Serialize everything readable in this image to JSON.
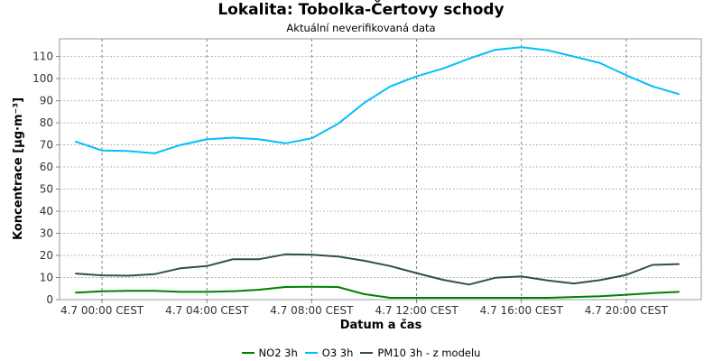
{
  "chart_data": {
    "type": "line",
    "title": "Lokalita: Tobolka-Čertovy schody",
    "subtitle": "Aktuální neverifikovaná data",
    "xlabel": "Datum a čas",
    "ylabel": "Koncentrace [µg·m⁻³]",
    "ylim": [
      0,
      118
    ],
    "yticks": [
      0,
      10,
      20,
      30,
      40,
      50,
      60,
      70,
      80,
      90,
      100,
      110
    ],
    "x_ticks": [
      {
        "hour": 0,
        "label": "4.7 00:00 CEST"
      },
      {
        "hour": 4,
        "label": "4.7 04:00 CEST"
      },
      {
        "hour": 8,
        "label": "4.7 08:00 CEST"
      },
      {
        "hour": 12,
        "label": "4.7 12:00 CEST"
      },
      {
        "hour": 16,
        "label": "4.7 16:00 CEST"
      },
      {
        "hour": 20,
        "label": "4.7 20:00 CEST"
      }
    ],
    "x_hours": [
      -1,
      0,
      1,
      2,
      3,
      4,
      5,
      6,
      7,
      8,
      9,
      10,
      11,
      12,
      13,
      14,
      15,
      16,
      17,
      18,
      19,
      20,
      21,
      22
    ],
    "grid": true,
    "legend_position": "bottom",
    "series": [
      {
        "name": "NO2 3h",
        "color": "#008000",
        "values": [
          3.2,
          3.8,
          4.0,
          4.0,
          3.5,
          3.5,
          3.8,
          4.5,
          5.7,
          5.8,
          5.7,
          2.5,
          0.8,
          0.8,
          0.8,
          0.8,
          0.8,
          0.8,
          0.8,
          1.2,
          1.5,
          2.2,
          3.0,
          3.5
        ]
      },
      {
        "name": "O3 3h",
        "color": "#00bfff",
        "values": [
          71.5,
          67.5,
          67.2,
          66.2,
          70.0,
          72.5,
          73.3,
          72.5,
          70.7,
          73.0,
          79.5,
          89.0,
          96.5,
          101.0,
          104.5,
          109.0,
          113.0,
          114.2,
          112.8,
          110.0,
          107.0,
          101.5,
          96.5,
          93.0
        ]
      },
      {
        "name": "PM10 3h - z modelu",
        "color": "#2f4f4f",
        "values": [
          11.8,
          11.0,
          10.8,
          11.5,
          14.2,
          15.2,
          18.3,
          18.3,
          20.5,
          20.3,
          19.5,
          17.6,
          15.2,
          12.0,
          9.0,
          6.8,
          9.9,
          10.5,
          8.7,
          7.3,
          8.8,
          11.2,
          15.7,
          16.1
        ]
      }
    ]
  }
}
